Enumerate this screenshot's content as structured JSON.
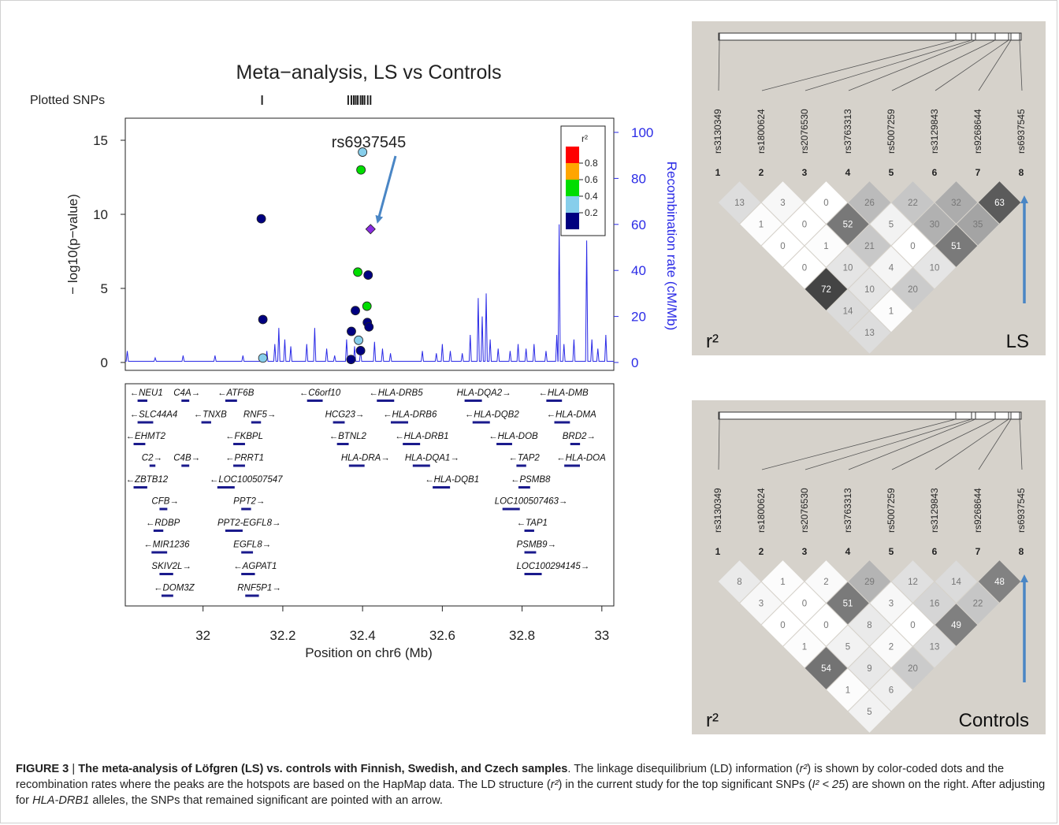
{
  "colors": {
    "recomb": "#2a2ae6",
    "r2_bins": [
      "#ff0000",
      "#ffa500",
      "#00dd00",
      "#87ceeb",
      "#000080"
    ],
    "lead": "#8a2be2",
    "ld_bg": "#d6d2cb",
    "arrow": "#4a86c5"
  },
  "chart_data": [
    {
      "type": "scatter",
      "title": "Meta−analysis, LS vs Controls",
      "plotted_snps_label": "Plotted SNPs",
      "plotted_snps_x": [
        32.148,
        32.364,
        32.372,
        32.378,
        32.383,
        32.388,
        32.395,
        32.4,
        32.405,
        32.413,
        32.42
      ],
      "xlabel": "Position on chr6 (Mb)",
      "ylabel": "− log10(p−value)",
      "ylabel2": "Recombination rate (cM/Mb)",
      "xlim": [
        31.805,
        33.03
      ],
      "ylim": [
        0,
        16
      ],
      "y2lim": [
        0,
        100
      ],
      "xticks": [
        32,
        32.2,
        32.4,
        32.6,
        32.8,
        33
      ],
      "xtick_labels": [
        "32",
        "32.2",
        "32.4",
        "32.6",
        "32.8",
        "33"
      ],
      "yticks": [
        0,
        5,
        10,
        15
      ],
      "ytick_labels": [
        "0",
        "5",
        "10",
        "15"
      ],
      "y2ticks": [
        0,
        20,
        40,
        60,
        80,
        100
      ],
      "y2tick_labels": [
        "0",
        "20",
        "40",
        "60",
        "80",
        "100"
      ],
      "legend": {
        "title": "r²",
        "position": "top-right",
        "labels": [
          "0.8",
          "0.6",
          "0.4",
          "0.2"
        ],
        "bins": [
          "0.8–1",
          "0.6–0.8",
          "0.4–0.6",
          "0.2–0.4",
          "0–0.2"
        ]
      },
      "annotation": {
        "label": "rs6937545",
        "x": 32.42,
        "y": 9.0
      },
      "points": [
        {
          "x": 32.146,
          "y": 9.7,
          "r2bin": 4
        },
        {
          "x": 32.15,
          "y": 2.9,
          "r2bin": 4
        },
        {
          "x": 32.15,
          "y": 0.3,
          "r2bin": 3
        },
        {
          "x": 32.4,
          "y": 14.2,
          "r2bin": 3
        },
        {
          "x": 32.396,
          "y": 13.0,
          "r2bin": 2
        },
        {
          "x": 32.42,
          "y": 9.0,
          "r2bin": -1
        },
        {
          "x": 32.388,
          "y": 6.1,
          "r2bin": 2
        },
        {
          "x": 32.414,
          "y": 5.9,
          "r2bin": 4
        },
        {
          "x": 32.411,
          "y": 3.8,
          "r2bin": 2
        },
        {
          "x": 32.382,
          "y": 3.5,
          "r2bin": 4
        },
        {
          "x": 32.412,
          "y": 2.7,
          "r2bin": 4
        },
        {
          "x": 32.416,
          "y": 2.4,
          "r2bin": 4
        },
        {
          "x": 32.372,
          "y": 2.1,
          "r2bin": 4
        },
        {
          "x": 32.39,
          "y": 1.5,
          "r2bin": 3
        },
        {
          "x": 32.395,
          "y": 0.8,
          "r2bin": 4
        },
        {
          "x": 32.371,
          "y": 0.2,
          "r2bin": 4
        }
      ],
      "recomb_peaks": [
        {
          "x": 31.81,
          "y": 5
        },
        {
          "x": 31.88,
          "y": 2
        },
        {
          "x": 31.95,
          "y": 3
        },
        {
          "x": 32.03,
          "y": 3
        },
        {
          "x": 32.1,
          "y": 3
        },
        {
          "x": 32.16,
          "y": 5
        },
        {
          "x": 32.18,
          "y": 8
        },
        {
          "x": 32.19,
          "y": 15
        },
        {
          "x": 32.205,
          "y": 10
        },
        {
          "x": 32.22,
          "y": 7
        },
        {
          "x": 32.26,
          "y": 8
        },
        {
          "x": 32.28,
          "y": 15
        },
        {
          "x": 32.31,
          "y": 6
        },
        {
          "x": 32.33,
          "y": 3
        },
        {
          "x": 32.36,
          "y": 10
        },
        {
          "x": 32.38,
          "y": 7
        },
        {
          "x": 32.395,
          "y": 5
        },
        {
          "x": 32.43,
          "y": 9
        },
        {
          "x": 32.45,
          "y": 6
        },
        {
          "x": 32.47,
          "y": 4
        },
        {
          "x": 32.55,
          "y": 5
        },
        {
          "x": 32.585,
          "y": 4
        },
        {
          "x": 32.6,
          "y": 8
        },
        {
          "x": 32.62,
          "y": 5
        },
        {
          "x": 32.65,
          "y": 4
        },
        {
          "x": 32.67,
          "y": 12
        },
        {
          "x": 32.69,
          "y": 28
        },
        {
          "x": 32.7,
          "y": 20
        },
        {
          "x": 32.71,
          "y": 30
        },
        {
          "x": 32.72,
          "y": 10
        },
        {
          "x": 32.74,
          "y": 6
        },
        {
          "x": 32.77,
          "y": 5
        },
        {
          "x": 32.79,
          "y": 8
        },
        {
          "x": 32.81,
          "y": 6
        },
        {
          "x": 32.83,
          "y": 8
        },
        {
          "x": 32.86,
          "y": 5
        },
        {
          "x": 32.887,
          "y": 12
        },
        {
          "x": 32.893,
          "y": 60
        },
        {
          "x": 32.905,
          "y": 8
        },
        {
          "x": 32.93,
          "y": 10
        },
        {
          "x": 32.962,
          "y": 53
        },
        {
          "x": 32.975,
          "y": 10
        },
        {
          "x": 32.99,
          "y": 6
        },
        {
          "x": 33.01,
          "y": 12
        }
      ],
      "genes": [
        {
          "name": "NEU1",
          "x": 31.82,
          "row": 0,
          "dir": "left"
        },
        {
          "name": "C4A",
          "x": 31.93,
          "row": 0,
          "dir": "right"
        },
        {
          "name": "ATF6B",
          "x": 32.04,
          "row": 0,
          "dir": "left"
        },
        {
          "name": "C6orf10",
          "x": 32.245,
          "row": 0,
          "dir": "left"
        },
        {
          "name": "HLA-DRB5",
          "x": 32.42,
          "row": 0,
          "dir": "left"
        },
        {
          "name": "HLA-DQA2",
          "x": 32.64,
          "row": 0,
          "dir": "right"
        },
        {
          "name": "HLA-DMB",
          "x": 32.845,
          "row": 0,
          "dir": "left"
        },
        {
          "name": "SLC44A4",
          "x": 31.82,
          "row": 1,
          "dir": "left"
        },
        {
          "name": "TNXB",
          "x": 31.98,
          "row": 1,
          "dir": "left"
        },
        {
          "name": "RNF5",
          "x": 32.105,
          "row": 1,
          "dir": "right"
        },
        {
          "name": "HCG23",
          "x": 32.31,
          "row": 1,
          "dir": "right"
        },
        {
          "name": "HLA-DRB6",
          "x": 32.455,
          "row": 1,
          "dir": "left"
        },
        {
          "name": "HLA-DQB2",
          "x": 32.66,
          "row": 1,
          "dir": "left"
        },
        {
          "name": "HLA-DMA",
          "x": 32.865,
          "row": 1,
          "dir": "left"
        },
        {
          "name": "EHMT2",
          "x": 31.81,
          "row": 2,
          "dir": "left"
        },
        {
          "name": "FKBPL",
          "x": 32.06,
          "row": 2,
          "dir": "left"
        },
        {
          "name": "BTNL2",
          "x": 32.32,
          "row": 2,
          "dir": "left"
        },
        {
          "name": "HLA-DRB1",
          "x": 32.485,
          "row": 2,
          "dir": "left"
        },
        {
          "name": "HLA-DOB",
          "x": 32.72,
          "row": 2,
          "dir": "left"
        },
        {
          "name": "BRD2",
          "x": 32.905,
          "row": 2,
          "dir": "right"
        },
        {
          "name": "C2",
          "x": 31.85,
          "row": 3,
          "dir": "right"
        },
        {
          "name": "C4B",
          "x": 31.93,
          "row": 3,
          "dir": "right"
        },
        {
          "name": "PRRT1",
          "x": 32.06,
          "row": 3,
          "dir": "left"
        },
        {
          "name": "HLA-DRA",
          "x": 32.35,
          "row": 3,
          "dir": "right"
        },
        {
          "name": "HLA-DQA1",
          "x": 32.51,
          "row": 3,
          "dir": "right"
        },
        {
          "name": "TAP2",
          "x": 32.77,
          "row": 3,
          "dir": "left"
        },
        {
          "name": "HLA-DOA",
          "x": 32.89,
          "row": 3,
          "dir": "left"
        },
        {
          "name": "ZBTB12",
          "x": 31.81,
          "row": 4,
          "dir": "left"
        },
        {
          "name": "LOC100507547",
          "x": 32.02,
          "row": 4,
          "dir": "left"
        },
        {
          "name": "HLA-DQB1",
          "x": 32.56,
          "row": 4,
          "dir": "left"
        },
        {
          "name": "PSMB8",
          "x": 32.775,
          "row": 4,
          "dir": "left"
        },
        {
          "name": "CFB",
          "x": 31.875,
          "row": 5,
          "dir": "right"
        },
        {
          "name": "PPT2",
          "x": 32.08,
          "row": 5,
          "dir": "right"
        },
        {
          "name": "LOC100507463",
          "x": 32.735,
          "row": 5,
          "dir": "right"
        },
        {
          "name": "RDBP",
          "x": 31.86,
          "row": 6,
          "dir": "left"
        },
        {
          "name": "PPT2-EGFL8",
          "x": 32.04,
          "row": 6,
          "dir": "right"
        },
        {
          "name": "TAP1",
          "x": 32.79,
          "row": 6,
          "dir": "left"
        },
        {
          "name": "MIR1236",
          "x": 31.855,
          "row": 7,
          "dir": "left"
        },
        {
          "name": "EGFL8",
          "x": 32.08,
          "row": 7,
          "dir": "right"
        },
        {
          "name": "PSMB9",
          "x": 32.79,
          "row": 7,
          "dir": "right"
        },
        {
          "name": "SKIV2L",
          "x": 31.875,
          "row": 8,
          "dir": "right"
        },
        {
          "name": "AGPAT1",
          "x": 32.08,
          "row": 8,
          "dir": "left"
        },
        {
          "name": "LOC100294145",
          "x": 32.79,
          "row": 8,
          "dir": "right"
        },
        {
          "name": "DOM3Z",
          "x": 31.88,
          "row": 9,
          "dir": "left"
        },
        {
          "name": "RNF5P1",
          "x": 32.09,
          "row": 9,
          "dir": "right"
        }
      ]
    },
    {
      "type": "heatmap",
      "title": "LS",
      "r2_label": "r²",
      "snps": [
        "rs3130349",
        "rs1800624",
        "rs2076530",
        "rs3763313",
        "rs5007259",
        "rs3129843",
        "rs9268644",
        "rs6937545"
      ],
      "indices": [
        "1",
        "2",
        "3",
        "4",
        "5",
        "6",
        "7",
        "8"
      ],
      "values": [
        [
          13,
          3,
          0,
          26,
          22,
          32,
          63
        ],
        [
          1,
          0,
          52,
          5,
          30,
          35
        ],
        [
          0,
          1,
          21,
          0,
          51
        ],
        [
          0,
          10,
          4,
          10
        ],
        [
          72,
          10,
          20
        ],
        [
          14,
          1
        ],
        [
          13
        ]
      ],
      "arrow_snp": "rs6937545"
    },
    {
      "type": "heatmap",
      "title": "Controls",
      "r2_label": "r²",
      "snps": [
        "rs3130349",
        "rs1800624",
        "rs2076530",
        "rs3763313",
        "rs5007259",
        "rs3129843",
        "rs9268644",
        "rs6937545"
      ],
      "indices": [
        "1",
        "2",
        "3",
        "4",
        "5",
        "6",
        "7",
        "8"
      ],
      "values": [
        [
          8,
          1,
          2,
          29,
          12,
          14,
          48
        ],
        [
          3,
          0,
          51,
          3,
          16,
          22
        ],
        [
          0,
          0,
          8,
          0,
          49
        ],
        [
          1,
          5,
          2,
          13
        ],
        [
          54,
          9,
          20
        ],
        [
          1,
          6
        ],
        [
          5
        ]
      ],
      "arrow_snp": "rs6937545"
    }
  ],
  "caption": {
    "figure_label": "FIGURE 3",
    "separator": " | ",
    "bold_title": "The meta-analysis of Löfgren (LS) vs. controls with Finnish, Swedish, and Czech samples",
    "t1": ". The linkage disequilibrium (LD) information (",
    "r2a": "r²",
    "t2": ") is shown by color-coded dots and the recombination rates where the peaks are the hotspots are based on the HapMap data. The LD structure (",
    "r2b": "r²",
    "t3": ") in the current study for the top significant SNPs (",
    "r2c": "I² < 25",
    "t4": ") are shown on the right. After adjusting for ",
    "gene": "HLA-DRB1",
    "t5": " alleles, the SNPs that remained significant are pointed with an arrow."
  }
}
